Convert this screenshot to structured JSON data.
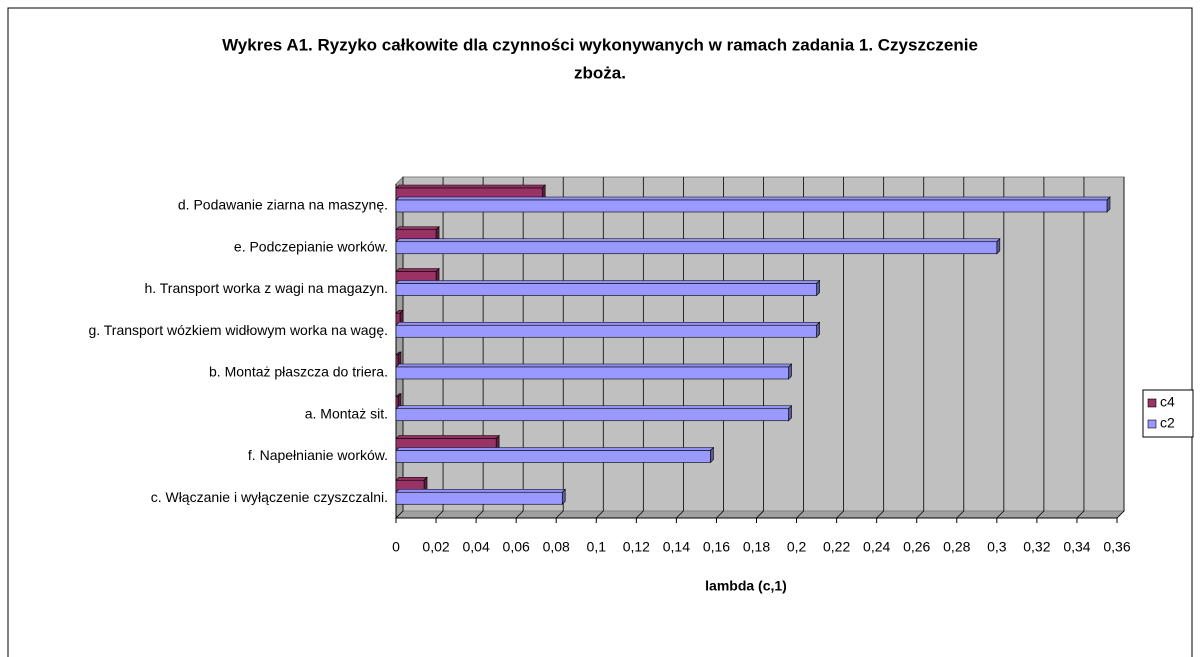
{
  "chart_data": {
    "type": "bar",
    "orientation": "horizontal",
    "title": "Wykres A1. Ryzyko całkowite dla czynności wykonywanych w ramach zadania 1. Czyszczenie zboża.",
    "xlabel": "lambda (c,1)",
    "categories": [
      "d. Podawanie ziarna na maszynę.",
      "e. Podczepianie worków.",
      "h. Transport worka z wagi na magazyn.",
      "g. Transport wózkiem widłowym worka na wagę.",
      "b. Montaż płaszcza do triera.",
      "a. Montaż sit.",
      "f. Napełnianie worków.",
      "c. Włączanie i wyłączenie czyszczalni."
    ],
    "series": [
      {
        "name": "c4",
        "color": "#993366",
        "values": [
          0.073,
          0.02,
          0.02,
          0.002,
          0.001,
          0.001,
          0.05,
          0.014
        ]
      },
      {
        "name": "c2",
        "color": "#9999ff",
        "values": [
          0.355,
          0.3,
          0.21,
          0.21,
          0.196,
          0.196,
          0.157,
          0.083
        ]
      }
    ],
    "xlim": [
      0,
      0.36
    ],
    "xticks": [
      0,
      {
        "value": 0.02,
        "label": "0,02"
      },
      {
        "value": 0.04,
        "label": "0,04"
      },
      {
        "value": 0.06,
        "label": "0,06"
      },
      {
        "value": 0.08,
        "label": "0,08"
      },
      {
        "value": 0.1,
        "label": "0,1"
      },
      {
        "value": 0.12,
        "label": "0,12"
      },
      {
        "value": 0.14,
        "label": "0,14"
      },
      {
        "value": 0.16,
        "label": "0,16"
      },
      {
        "value": 0.18,
        "label": "0,18"
      },
      {
        "value": 0.2,
        "label": "0,2"
      },
      {
        "value": 0.22,
        "label": "0,22"
      },
      {
        "value": 0.24,
        "label": "0,24"
      },
      {
        "value": 0.26,
        "label": "0,26"
      },
      {
        "value": 0.28,
        "label": "0,28"
      },
      {
        "value": 0.3,
        "label": "0,3"
      },
      {
        "value": 0.32,
        "label": "0,32"
      },
      {
        "value": 0.34,
        "label": "0,34"
      },
      {
        "value": 0.36,
        "label": "0,36"
      }
    ],
    "grid": true,
    "legend": "right"
  }
}
